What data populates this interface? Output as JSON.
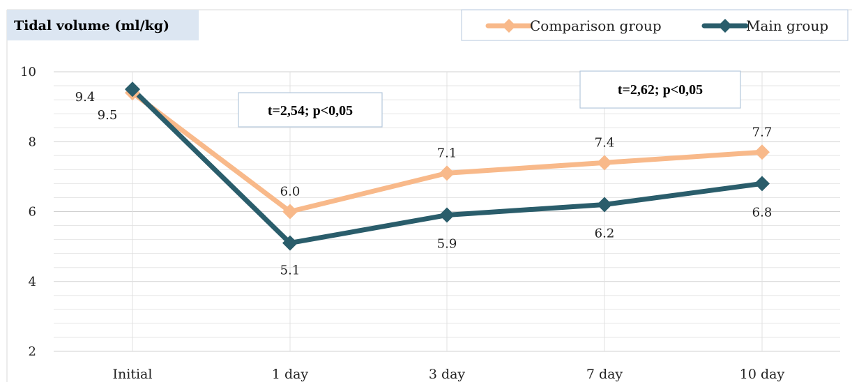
{
  "chart_data": {
    "type": "line",
    "title": "Tidal volume (ml/kg)",
    "categories": [
      "Initial",
      "1 day",
      "3 day",
      "7 day",
      "10 day"
    ],
    "y_ticks": [
      "2",
      "4",
      "6",
      "8",
      "10"
    ],
    "ylim": [
      2,
      10
    ],
    "grid": true,
    "legend_position": "top-right",
    "series": [
      {
        "name": "Comparison group",
        "color": "#F8B98A",
        "values": [
          9.4,
          6.0,
          7.1,
          7.4,
          7.7
        ],
        "labels": [
          "9.4",
          "6.0",
          "7.1",
          "7.4",
          "7.7"
        ]
      },
      {
        "name": "Main group",
        "color": "#2A5D6B",
        "values": [
          9.5,
          5.1,
          5.9,
          6.2,
          6.8
        ],
        "labels": [
          "9.5",
          "5.1",
          "5.9",
          "6.2",
          "6.8"
        ]
      }
    ],
    "annotations": [
      "t=2,54; p<0,05",
      "t=2,62; p<0,05"
    ],
    "colors": {
      "title_bg": "#DCE6F2",
      "grid": "#D9D9D9",
      "box_border": "#B4C7DC"
    }
  }
}
